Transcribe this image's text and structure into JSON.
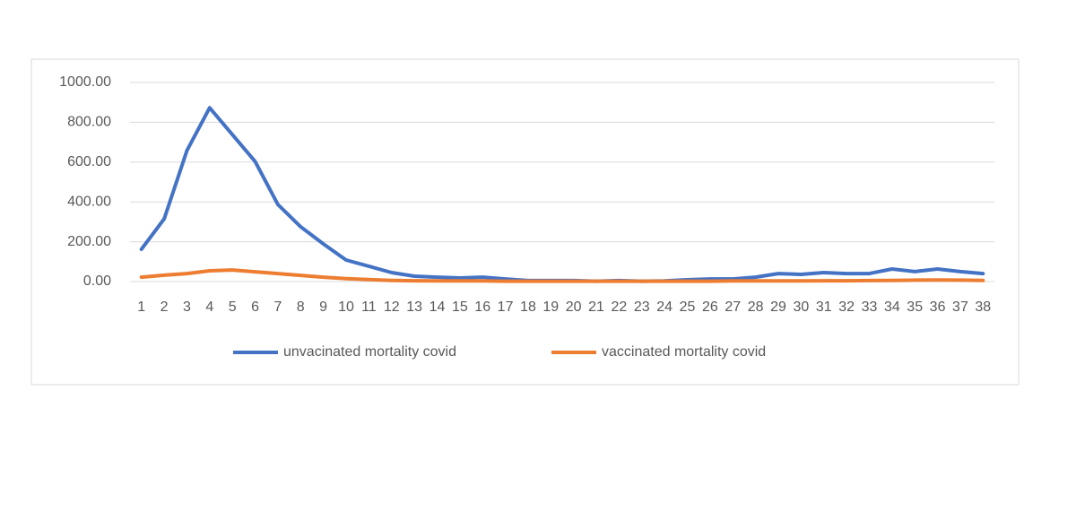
{
  "chart_data": {
    "type": "line",
    "categories": [
      "1",
      "2",
      "3",
      "4",
      "5",
      "6",
      "7",
      "8",
      "9",
      "10",
      "11",
      "12",
      "13",
      "14",
      "15",
      "16",
      "17",
      "18",
      "19",
      "20",
      "21",
      "22",
      "23",
      "24",
      "25",
      "26",
      "27",
      "28",
      "29",
      "30",
      "31",
      "32",
      "33",
      "34",
      "35",
      "36",
      "37",
      "38"
    ],
    "series": [
      {
        "name": "unvacinated mortality covid",
        "color": "#4472c4",
        "values": [
          162,
          315,
          657,
          873,
          738,
          603,
          387,
          275,
          189,
          108,
          77,
          45,
          27,
          22,
          18,
          22,
          13,
          5,
          5,
          5,
          2,
          5,
          2,
          3,
          9,
          13,
          13,
          22,
          40,
          36,
          45,
          40,
          40,
          63,
          50,
          63,
          50,
          40
        ]
      },
      {
        "name": "vaccinated mortality covid",
        "color": "#ed7d31",
        "values": [
          22,
          32,
          40,
          54,
          58,
          49,
          40,
          31,
          22,
          15,
          10,
          6,
          4,
          3,
          3,
          3,
          2,
          2,
          2,
          2,
          2,
          2,
          2,
          2,
          2,
          2,
          3,
          3,
          3,
          3,
          4,
          4,
          5,
          6,
          7,
          8,
          7,
          6
        ]
      }
    ],
    "ylim": [
      0,
      1000
    ],
    "yticks": [
      {
        "value": 0,
        "label": "0.00"
      },
      {
        "value": 200,
        "label": "200.00"
      },
      {
        "value": 400,
        "label": "400.00"
      },
      {
        "value": 600,
        "label": "600.00"
      },
      {
        "value": 800,
        "label": "800.00"
      },
      {
        "value": 1000,
        "label": "1000.00"
      }
    ],
    "grid": true,
    "legend": "bottom"
  }
}
